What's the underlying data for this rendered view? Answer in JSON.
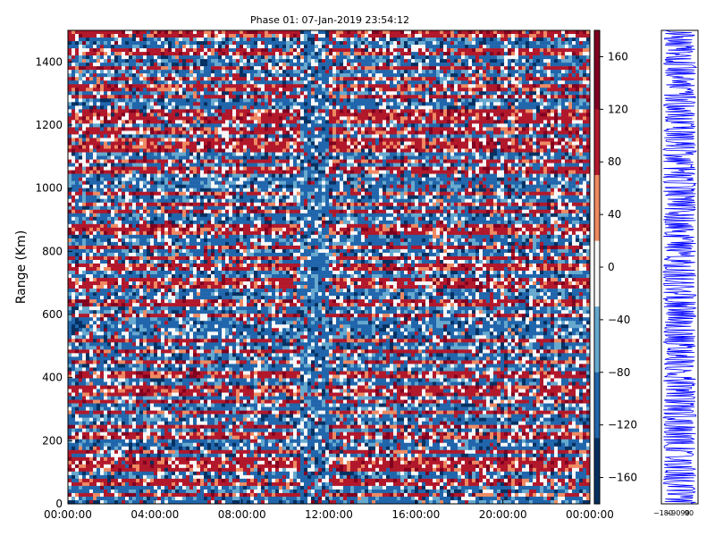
{
  "chart_data": [
    {
      "type": "heatmap",
      "title": "Phase 01: 07-Jan-2019 23:54:12",
      "xlabel": "",
      "ylabel": "Range (Km)",
      "x_ticks": [
        "00:00:00",
        "04:00:00",
        "08:00:00",
        "12:00:00",
        "16:00:00",
        "20:00:00",
        "00:00:00"
      ],
      "y_ticks": [
        "0",
        "200",
        "400",
        "600",
        "800",
        "1000",
        "1200",
        "1400"
      ],
      "xlim": [
        "00:00:00",
        "00:00:00"
      ],
      "ylim": [
        0,
        1500
      ],
      "colorbar": {
        "ticks": [
          "160",
          "120",
          "80",
          "40",
          "0",
          "−40",
          "−80",
          "−120",
          "−160"
        ],
        "range": [
          -180,
          180
        ],
        "colormap": "RdBu"
      },
      "colors": {
        "strong_red": "#800020",
        "red": "#b2182b",
        "light_red": "#ef8a62",
        "white": "#f7f7f7",
        "light_blue": "#67a9cf",
        "blue": "#2166ac",
        "dark_blue": "#053061"
      }
    },
    {
      "type": "line",
      "x_ticks": [
        "−180",
        "−9090",
        "90"
      ],
      "xlim": [
        -180,
        180
      ],
      "ylim": [
        0,
        1500
      ],
      "series_color": "#0000ff"
    }
  ]
}
